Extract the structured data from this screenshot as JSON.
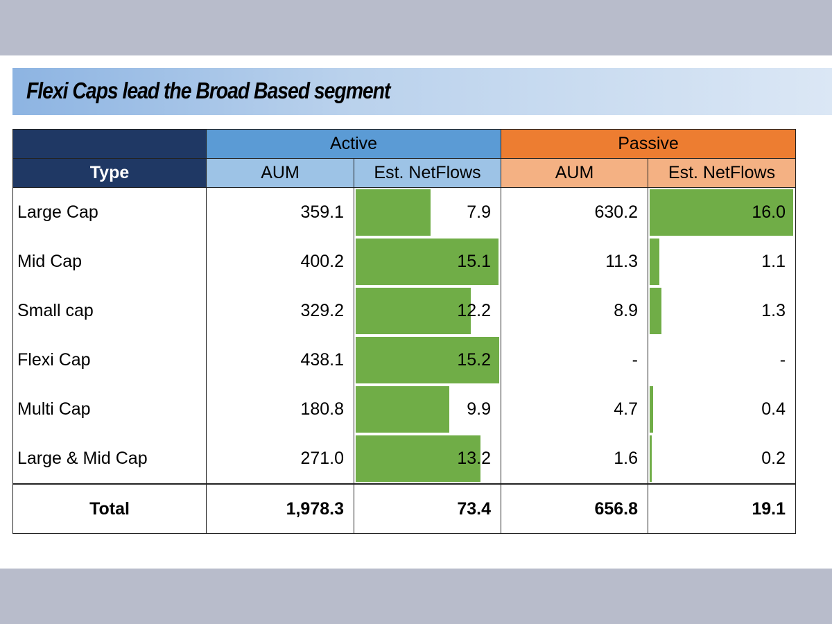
{
  "title": "Flexi Caps lead the Broad Based segment",
  "header": {
    "type_label": "Type",
    "active_label": "Active",
    "passive_label": "Passive",
    "aum_label": "AUM",
    "netflows_label": "Est. NetFlows"
  },
  "colors": {
    "active_header": "#5b9bd5",
    "passive_header": "#ed7d31",
    "type_header": "#1f3864",
    "bar": "#70ad47"
  },
  "chart_data": {
    "type": "table",
    "title": "Flexi Caps lead the Broad Based segment",
    "columns": [
      "Type",
      "Active AUM",
      "Active Est. NetFlows",
      "Passive AUM",
      "Passive Est. NetFlows"
    ],
    "rows": [
      {
        "type": "Large Cap",
        "active_aum": "359.1",
        "active_flows": "7.9",
        "passive_aum": "630.2",
        "passive_flows": "16.0"
      },
      {
        "type": "Mid Cap",
        "active_aum": "400.2",
        "active_flows": "15.1",
        "passive_aum": "11.3",
        "passive_flows": "1.1"
      },
      {
        "type": "Small cap",
        "active_aum": "329.2",
        "active_flows": "12.2",
        "passive_aum": "8.9",
        "passive_flows": "1.3"
      },
      {
        "type": "Flexi Cap",
        "active_aum": "438.1",
        "active_flows": "15.2",
        "passive_aum": "-",
        "passive_flows": "-"
      },
      {
        "type": "Multi Cap",
        "active_aum": "180.8",
        "active_flows": "9.9",
        "passive_aum": "4.7",
        "passive_flows": "0.4"
      },
      {
        "type": "Large & Mid Cap",
        "active_aum": "271.0",
        "active_flows": "13.2",
        "passive_aum": "1.6",
        "passive_flows": "0.2"
      }
    ],
    "total": {
      "type": "Total",
      "active_aum": "1,978.3",
      "active_flows": "73.4",
      "passive_aum": "656.8",
      "passive_flows": "19.1"
    },
    "bars": {
      "active_flows": [
        7.9,
        15.1,
        12.2,
        15.2,
        9.9,
        13.2
      ],
      "active_flows_max": 15.2,
      "passive_flows": [
        16.0,
        1.1,
        1.3,
        0,
        0.4,
        0.2
      ],
      "passive_flows_max": 16.0
    }
  }
}
